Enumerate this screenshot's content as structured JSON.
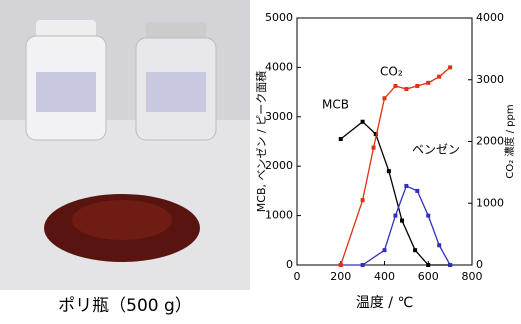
{
  "photo": {
    "caption": "ポリ瓶（500 g）"
  },
  "chart_data": {
    "type": "line",
    "xlabel": "温度 / ℃",
    "ylabel": "MCB, ベンゼン / ピーク面積",
    "y2label": "CO₂ 濃度 / ppm",
    "xlim": [
      0,
      800
    ],
    "xticks": [
      0,
      200,
      400,
      600,
      800
    ],
    "ylim": [
      0,
      5000
    ],
    "yticks": [
      0,
      1000,
      2000,
      3000,
      4000,
      5000
    ],
    "y2lim": [
      0,
      4000
    ],
    "y2ticks": [
      0,
      1000,
      2000,
      3000,
      4000
    ],
    "series": [
      {
        "name": "MCB",
        "color": "#000000",
        "x": [
          200,
          300,
          360,
          420,
          480,
          540,
          600,
          700
        ],
        "values": [
          2550,
          2900,
          2650,
          1900,
          900,
          300,
          0,
          0
        ]
      },
      {
        "name": "ベンゼン",
        "color": "#3030c0",
        "x": [
          200,
          300,
          400,
          450,
          500,
          550,
          600,
          650,
          700
        ],
        "values": [
          0,
          0,
          300,
          1000,
          1600,
          1500,
          1000,
          400,
          0
        ]
      },
      {
        "name": "CO₂",
        "color": "#e03010",
        "axis": "y2",
        "x": [
          200,
          300,
          350,
          400,
          450,
          500,
          550,
          600,
          650,
          700
        ],
        "values": [
          0,
          1050,
          1900,
          2700,
          2900,
          2850,
          2900,
          2950,
          3050,
          3200
        ]
      }
    ]
  }
}
